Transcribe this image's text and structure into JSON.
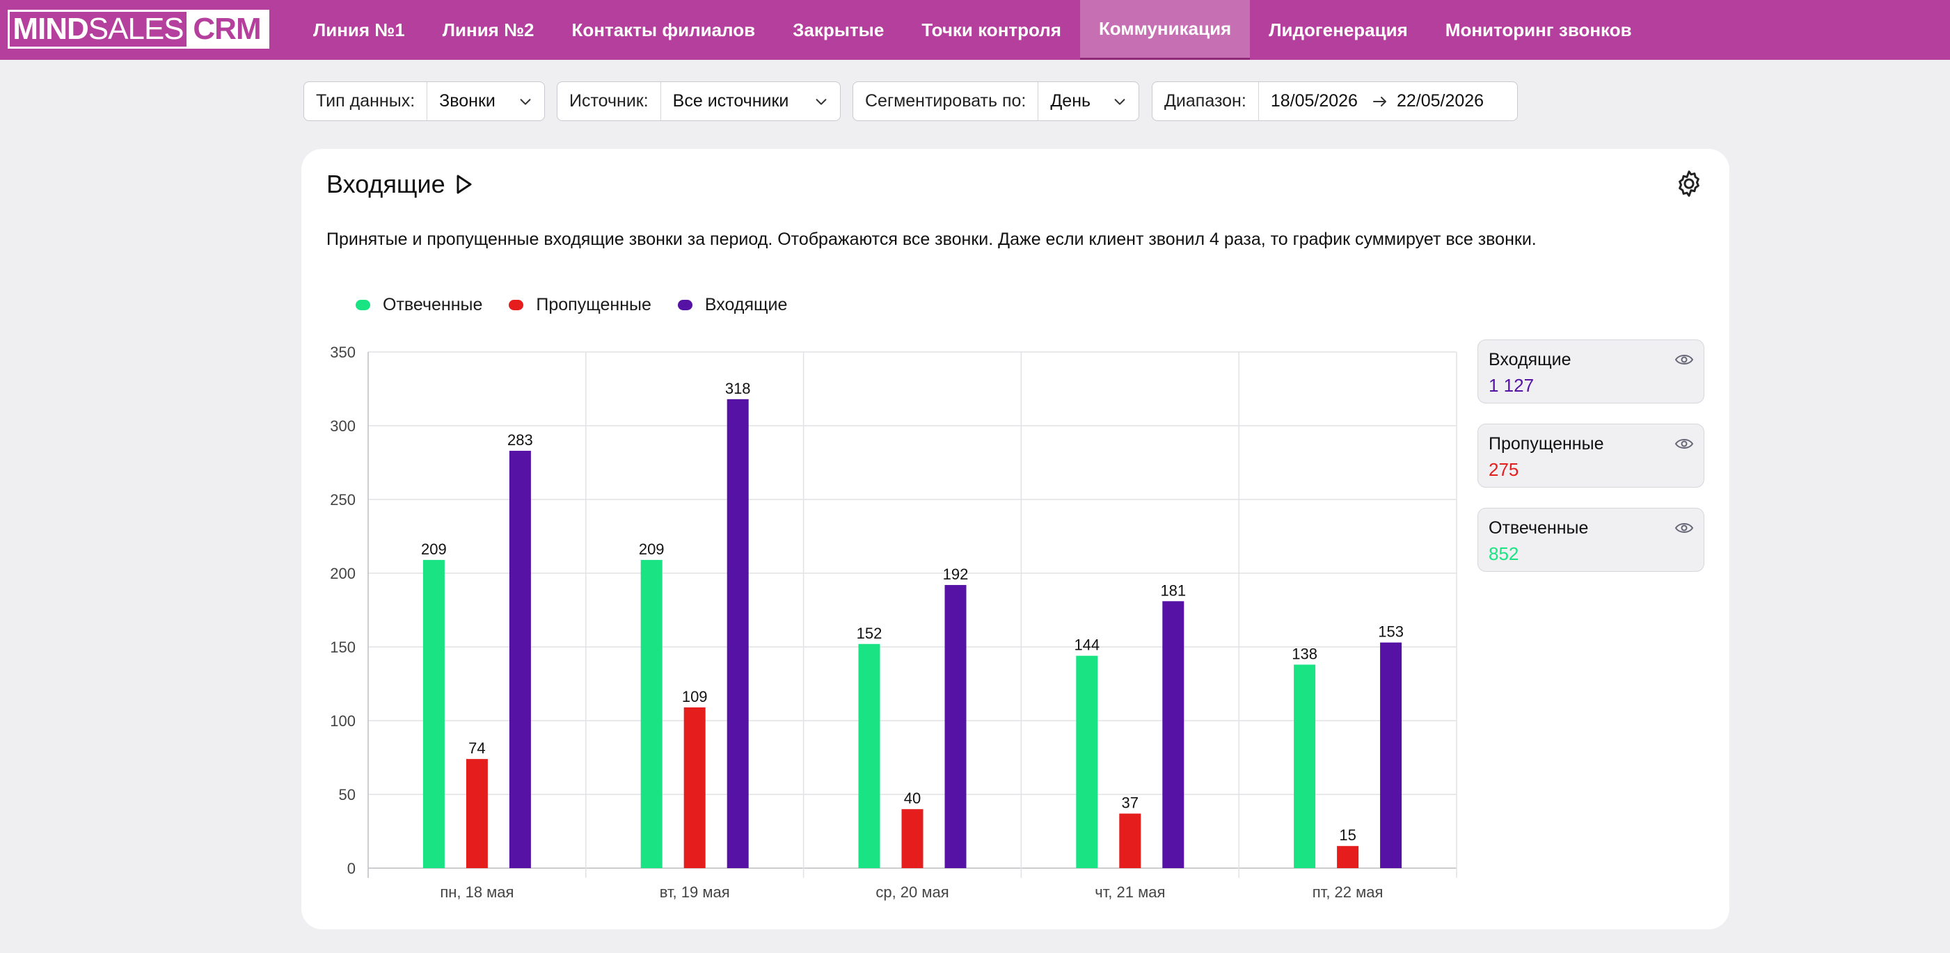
{
  "logo": {
    "part1_bold": "MIND",
    "part1_light": "SALES",
    "part2": "CRM"
  },
  "nav": {
    "items": [
      {
        "label": "Линия №1"
      },
      {
        "label": "Линия №2"
      },
      {
        "label": "Контакты филиалов"
      },
      {
        "label": "Закрытые"
      },
      {
        "label": "Точки контроля"
      },
      {
        "label": "Коммуникация",
        "active": true
      },
      {
        "label": "Лидогенерация"
      },
      {
        "label": "Мониторинг звонков"
      }
    ]
  },
  "filters": {
    "data_type": {
      "label": "Тип данных:",
      "value": "Звонки"
    },
    "source": {
      "label": "Источник:",
      "value": "Все источники"
    },
    "segment": {
      "label": "Сегментировать по:",
      "value": "День"
    },
    "range": {
      "label": "Диапазон:",
      "from": "18/05/2026",
      "to": "22/05/2026"
    }
  },
  "card": {
    "title": "Входящие",
    "description": "Принятые и пропущенные входящие звонки за период. Отображаются все звонки. Даже если клиент звонил 4 раза, то график суммирует все звонки."
  },
  "colors": {
    "answered": "#1ae383",
    "missed": "#e51d1d",
    "incoming": "#5512a4",
    "accent": "#b53f9c"
  },
  "chart_data": {
    "type": "bar",
    "categories": [
      "пн, 18 мая",
      "вт, 19 мая",
      "ср, 20 мая",
      "чт, 21 мая",
      "пт, 22 мая"
    ],
    "series": [
      {
        "name": "Отвеченные",
        "color": "#1ae383",
        "values": [
          209,
          209,
          152,
          144,
          138
        ]
      },
      {
        "name": "Пропущенные",
        "color": "#e51d1d",
        "values": [
          74,
          109,
          40,
          37,
          15
        ]
      },
      {
        "name": "Входящие",
        "color": "#5512a4",
        "values": [
          283,
          318,
          192,
          181,
          153
        ]
      }
    ],
    "ylim": [
      0,
      350
    ],
    "yticks": [
      0,
      50,
      100,
      150,
      200,
      250,
      300,
      350
    ],
    "grid": true,
    "legend": "top-left"
  },
  "stats": [
    {
      "name": "Входящие",
      "value": "1 127",
      "color": "#5512a4"
    },
    {
      "name": "Пропущенные",
      "value": "275",
      "color": "#e51d1d"
    },
    {
      "name": "Отвеченные",
      "value": "852",
      "color": "#1ae383"
    }
  ]
}
